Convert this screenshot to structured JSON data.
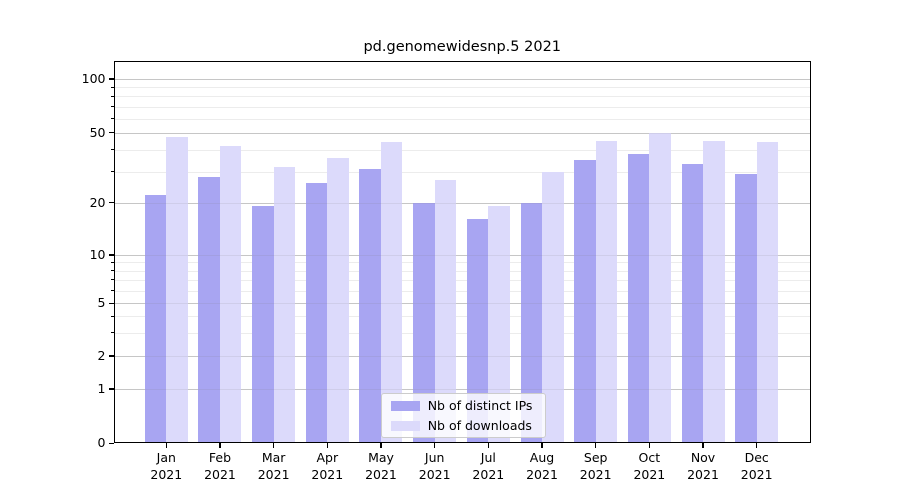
{
  "chart_data": {
    "type": "bar",
    "title": "pd.genomewidesnp.5 2021",
    "categories": [
      "Jan",
      "Feb",
      "Mar",
      "Apr",
      "May",
      "Jun",
      "Jul",
      "Aug",
      "Sep",
      "Oct",
      "Nov",
      "Dec"
    ],
    "category_year": "2021",
    "series": [
      {
        "name": "Nb of distinct IPs",
        "color": "#a8a5f2",
        "values": [
          22,
          28,
          19,
          26,
          31,
          20,
          16,
          20,
          35,
          38,
          33,
          29
        ]
      },
      {
        "name": "Nb of downloads",
        "color": "#dcdafb",
        "values": [
          47,
          42,
          32,
          36,
          44,
          27,
          19,
          30,
          45,
          50,
          45,
          44
        ]
      }
    ],
    "yscale": "symlog",
    "yticks": [
      0,
      1,
      2,
      5,
      10,
      20,
      50,
      100
    ],
    "minor_yticks": [
      3,
      4,
      6,
      7,
      8,
      9,
      30,
      40,
      60,
      70,
      80,
      90
    ],
    "ylim": [
      0,
      110
    ],
    "grid": true,
    "legend_position": "lower center"
  }
}
